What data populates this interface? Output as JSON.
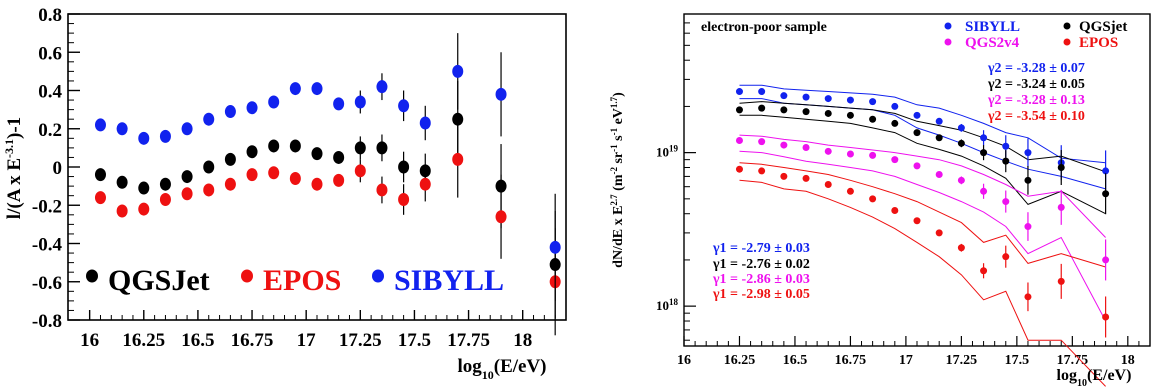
{
  "chart_data": [
    {
      "type": "scatter",
      "title": "",
      "xlabel": "log10(E/eV)",
      "ylabel": "l/(A x E^-3.1)-1",
      "xlim": [
        15.9,
        18.2
      ],
      "ylim": [
        -0.8,
        0.8
      ],
      "grid": false,
      "legend_placement": "bottom-left",
      "x_ticks": [
        "16",
        "16.25",
        "16.5",
        "16.75",
        "17",
        "17.25",
        "17.5",
        "17.75",
        "18"
      ],
      "y_ticks": [
        "-0.8",
        "-0.6",
        "-0.4",
        "-0.2",
        "0",
        "0.2",
        "0.4",
        "0.6",
        "0.8"
      ],
      "series": [
        {
          "name": "QGSJet",
          "color": "#000000",
          "x": [
            16.05,
            16.15,
            16.25,
            16.35,
            16.45,
            16.55,
            16.65,
            16.75,
            16.85,
            16.95,
            17.05,
            17.15,
            17.25,
            17.35,
            17.45,
            17.55,
            17.7,
            17.9,
            18.15
          ],
          "y": [
            -0.04,
            -0.08,
            -0.11,
            -0.09,
            -0.05,
            0.0,
            0.04,
            0.08,
            0.11,
            0.11,
            0.07,
            0.05,
            0.1,
            0.1,
            0.0,
            -0.02,
            0.25,
            -0.1,
            -0.51
          ],
          "yerr": [
            0.02,
            0.02,
            0.02,
            0.02,
            0.02,
            0.02,
            0.02,
            0.02,
            0.02,
            0.03,
            0.03,
            0.03,
            0.06,
            0.07,
            0.08,
            0.09,
            0.2,
            0.22,
            0.28
          ]
        },
        {
          "name": "EPOS",
          "color": "#ee1111",
          "x": [
            16.05,
            16.15,
            16.25,
            16.35,
            16.45,
            16.55,
            16.65,
            16.75,
            16.85,
            16.95,
            17.05,
            17.15,
            17.25,
            17.35,
            17.45,
            17.55,
            17.7,
            17.9,
            18.15
          ],
          "y": [
            -0.16,
            -0.23,
            -0.22,
            -0.17,
            -0.14,
            -0.12,
            -0.09,
            -0.04,
            -0.03,
            -0.06,
            -0.09,
            -0.07,
            -0.02,
            -0.12,
            -0.17,
            -0.09,
            0.04,
            -0.26,
            -0.6
          ],
          "yerr": [
            0.02,
            0.02,
            0.02,
            0.02,
            0.02,
            0.02,
            0.02,
            0.02,
            0.02,
            0.03,
            0.03,
            0.03,
            0.06,
            0.07,
            0.08,
            0.09,
            0.2,
            0.22,
            0.28
          ]
        },
        {
          "name": "SIBYLL",
          "color": "#1122ee",
          "x": [
            16.05,
            16.15,
            16.25,
            16.35,
            16.45,
            16.55,
            16.65,
            16.75,
            16.85,
            16.95,
            17.05,
            17.15,
            17.25,
            17.35,
            17.45,
            17.55,
            17.7,
            17.9,
            18.15
          ],
          "y": [
            0.22,
            0.2,
            0.15,
            0.16,
            0.2,
            0.25,
            0.29,
            0.31,
            0.34,
            0.41,
            0.41,
            0.33,
            0.34,
            0.42,
            0.32,
            0.23,
            0.5,
            0.38,
            -0.42
          ],
          "yerr": [
            0.02,
            0.02,
            0.02,
            0.02,
            0.02,
            0.02,
            0.02,
            0.02,
            0.02,
            0.03,
            0.03,
            0.03,
            0.06,
            0.07,
            0.08,
            0.09,
            0.2,
            0.22,
            0.28
          ]
        }
      ]
    },
    {
      "type": "line",
      "title": "electron-poor sample",
      "xlabel": "log10(E/eV)",
      "ylabel": "dN/dE x E^2.7 (m^-2 sr^-1 s^-1 eV^1.7)",
      "xlim": [
        16.0,
        18.1
      ],
      "ylim": [
        5.5e+17,
        8e+19
      ],
      "log_y": true,
      "grid": false,
      "legend_placement": "top-right",
      "x_ticks": [
        "16",
        "16.25",
        "16.5",
        "16.75",
        "17",
        "17.25",
        "17.5",
        "17.75",
        "18"
      ],
      "y_ticks": [
        "10^18",
        "10^19"
      ],
      "fit_labels_high": [
        {
          "text": "γ2 = -3.28 ± 0.07",
          "color": "#1122ee"
        },
        {
          "text": "γ2 = -3.24 ± 0.05",
          "color": "#000000"
        },
        {
          "text": "γ2 = -3.28 ± 0.13",
          "color": "#ee11ee"
        },
        {
          "text": "γ2 = -3.54 ± 0.10",
          "color": "#ee1111"
        }
      ],
      "fit_labels_low": [
        {
          "text": "γ1 = -2.79 ± 0.03",
          "color": "#1122ee"
        },
        {
          "text": "γ1 = -2.76 ± 0.02",
          "color": "#000000"
        },
        {
          "text": "γ1 = -2.86 ± 0.03",
          "color": "#ee11ee"
        },
        {
          "text": "γ1 = -2.98 ± 0.05",
          "color": "#ee1111"
        }
      ],
      "series": [
        {
          "name": "SIBYLL",
          "color": "#1122ee",
          "x": [
            16.25,
            16.35,
            16.45,
            16.55,
            16.65,
            16.75,
            16.85,
            16.95,
            17.05,
            17.15,
            17.25,
            17.35,
            17.45,
            17.55,
            17.7,
            17.9
          ],
          "y": [
            2.5e+19,
            2.5e+19,
            2.35e+19,
            2.3e+19,
            2.25e+19,
            2.2e+19,
            2.15e+19,
            2e+19,
            1.75e+19,
            1.6e+19,
            1.45e+19,
            1.25e+19,
            1.1e+19,
            1e+19,
            8.6e+18,
            7.6e+18
          ],
          "band_low": [
            2.25e+19,
            2.25e+19,
            2.1e+19,
            2.05e+19,
            2e+19,
            1.95e+19,
            1.9e+19,
            1.75e+19,
            1.45e+19,
            1.3e+19,
            1.15e+19,
            1e+19,
            8.8e+18,
            7.8e+18,
            7e+18,
            5.8e+18
          ],
          "band_high": [
            2.75e+19,
            2.75e+19,
            2.6e+19,
            2.55e+19,
            2.5e+19,
            2.45e+19,
            2.4e+19,
            2.3e+19,
            2.05e+19,
            1.95e+19,
            1.75e+19,
            1.55e+19,
            1.35e+19,
            1.25e+19,
            9.2e+18,
            8.6e+18
          ]
        },
        {
          "name": "QGSjet",
          "color": "#000000",
          "x": [
            16.25,
            16.35,
            16.45,
            16.55,
            16.65,
            16.75,
            16.85,
            16.95,
            17.05,
            17.15,
            17.25,
            17.35,
            17.45,
            17.55,
            17.7,
            17.9
          ],
          "y": [
            1.9e+19,
            1.95e+19,
            1.9e+19,
            1.85e+19,
            1.8e+19,
            1.75e+19,
            1.65e+19,
            1.55e+19,
            1.35e+19,
            1.25e+19,
            1.15e+19,
            1e+19,
            8.8e+18,
            6.6e+18,
            8e+18,
            5.4e+18
          ],
          "band_low": [
            1.75e+19,
            1.75e+19,
            1.7e+19,
            1.65e+19,
            1.6e+19,
            1.55e+19,
            1.45e+19,
            1.35e+19,
            1.15e+19,
            1.05e+19,
            9.5e+18,
            8.2e+18,
            6.8e+18,
            4.6e+18,
            5.6e+18,
            4e+18
          ],
          "band_high": [
            2.1e+19,
            2.15e+19,
            2.1e+19,
            2.05e+19,
            2e+19,
            1.95e+19,
            1.9e+19,
            1.8e+19,
            1.6e+19,
            1.5e+19,
            1.4e+19,
            1.25e+19,
            1.1e+19,
            9e+18,
            9.5e+18,
            7.5e+18
          ]
        },
        {
          "name": "QGS2v4",
          "color": "#ee11ee",
          "x": [
            16.25,
            16.35,
            16.45,
            16.55,
            16.65,
            16.75,
            16.85,
            16.95,
            17.05,
            17.15,
            17.25,
            17.35,
            17.45,
            17.55,
            17.7,
            17.9
          ],
          "y": [
            1.2e+19,
            1.18e+19,
            1.12e+19,
            1.08e+19,
            1.02e+19,
            9.8e+18,
            9.6e+18,
            9e+18,
            8.2e+18,
            7.2e+18,
            6.6e+18,
            5.6e+18,
            4.8e+18,
            3.3e+18,
            4.4e+18,
            2e+18
          ],
          "band_low": [
            1.02e+19,
            1e+19,
            9.4e+18,
            8.8e+18,
            8.4e+18,
            8e+18,
            7.6e+18,
            7e+18,
            6.2e+18,
            5.5e+18,
            4.8e+18,
            4.1e+18,
            3.3e+18,
            2.2e+18,
            2.8e+18,
            8e+17
          ],
          "band_high": [
            1.3e+19,
            1.28e+19,
            1.22e+19,
            1.18e+19,
            1.12e+19,
            1.08e+19,
            1.04e+19,
            1e+19,
            9.5e+18,
            9e+18,
            8.2e+18,
            7.2e+18,
            6.2e+18,
            5.2e+18,
            5.6e+18,
            2.8e+18
          ]
        },
        {
          "name": "EPOS",
          "color": "#ee1111",
          "x": [
            16.25,
            16.35,
            16.45,
            16.55,
            16.65,
            16.75,
            16.85,
            16.95,
            17.05,
            17.15,
            17.25,
            17.35,
            17.45,
            17.55,
            17.7,
            17.9
          ],
          "y": [
            7.8e+18,
            7.6e+18,
            7e+18,
            6.8e+18,
            6.2e+18,
            5.6e+18,
            5e+18,
            4.2e+18,
            3.6e+18,
            3e+18,
            2.4e+18,
            1.7e+18,
            2.1e+18,
            1.15e+18,
            1.45e+18,
            8.5e+17
          ],
          "band_low": [
            6.6e+18,
            6.4e+18,
            5.8e+18,
            5.6e+18,
            5e+18,
            4.4e+18,
            3.8e+18,
            3.2e+18,
            2.6e+18,
            2.1e+18,
            1.6e+18,
            1.1e+18,
            1.25e+18,
            6e+17,
            6e+17,
            3e+17
          ],
          "band_high": [
            8.6e+18,
            8.4e+18,
            8e+18,
            7.6e+18,
            7.2e+18,
            6.6e+18,
            6e+18,
            5.4e+18,
            4.8e+18,
            4.1e+18,
            3.5e+18,
            2.6e+18,
            2.9e+18,
            1.9e+18,
            2.2e+18,
            1.8e+18
          ]
        }
      ]
    }
  ]
}
